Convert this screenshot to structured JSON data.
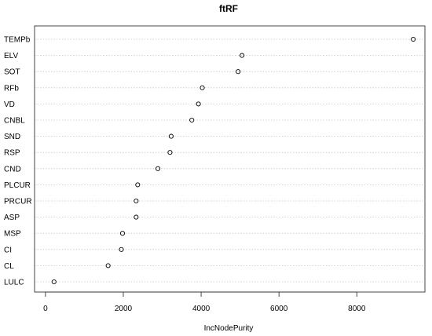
{
  "chart_data": {
    "type": "scatter",
    "title": "ftRF",
    "xlabel": "IncNodePurity",
    "ylabel": "",
    "categories": [
      "TEMPb",
      "ELV",
      "SOT",
      "RFb",
      "VD",
      "CNBL",
      "SND",
      "RSP",
      "CND",
      "PLCUR",
      "PRCUR",
      "ASP",
      "MSP",
      "CI",
      "CL",
      "LULC"
    ],
    "values": [
      9450,
      5050,
      4950,
      4030,
      3930,
      3760,
      3230,
      3200,
      2890,
      2370,
      2330,
      2330,
      1980,
      1950,
      1610,
      220
    ],
    "xticks": [
      0,
      2000,
      4000,
      6000,
      8000
    ],
    "xticklabels": [
      "0",
      "2000",
      "4000",
      "6000",
      "8000"
    ],
    "xlim": [
      -280,
      9750
    ],
    "grid": "dotted horizontal lines per category"
  }
}
